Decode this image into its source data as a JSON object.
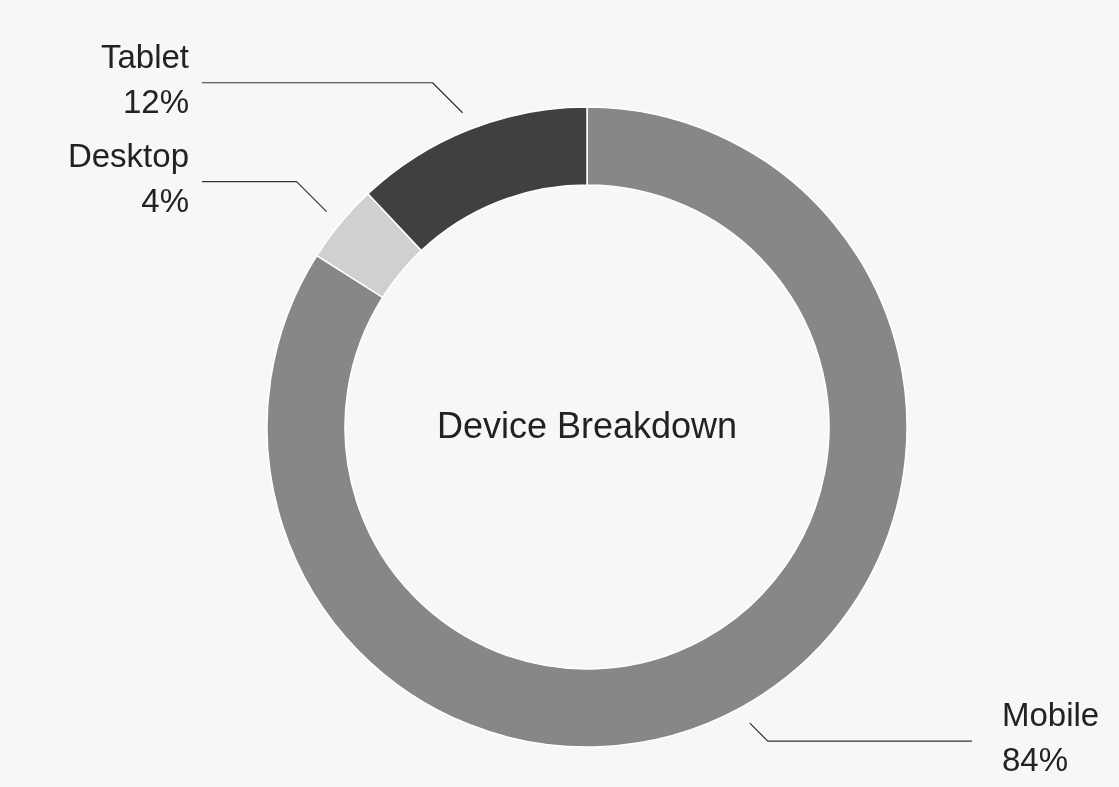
{
  "chart_data": {
    "type": "donut",
    "title": "Device Breakdown",
    "categories": [
      "Mobile",
      "Desktop",
      "Tablet"
    ],
    "values": [
      84,
      4,
      12
    ],
    "colors": [
      "#878787",
      "#d0d1ce",
      "#404040"
    ],
    "value_labels": [
      "84%",
      "4%",
      "12%"
    ]
  }
}
